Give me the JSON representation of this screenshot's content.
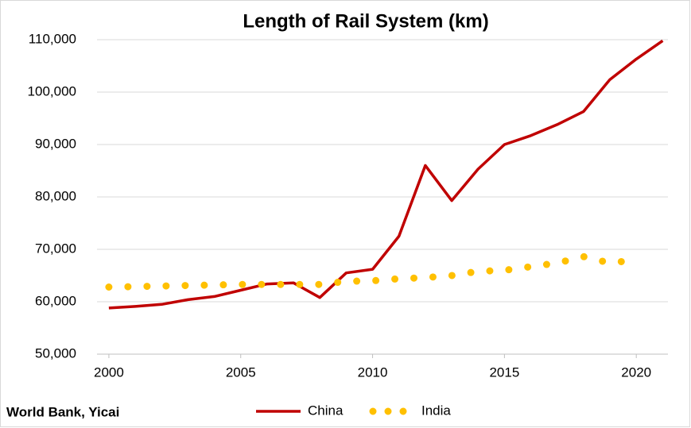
{
  "chart_data": {
    "type": "line",
    "title": "Length of Rail System (km)",
    "source": "World Bank, Yicai",
    "series": [
      {
        "name": "China",
        "color": "#c00000",
        "style": "solid",
        "x": [
          2000,
          2001,
          2002,
          2003,
          2004,
          2005,
          2006,
          2007,
          2008,
          2009,
          2010,
          2011,
          2012,
          2013,
          2014,
          2015,
          2016,
          2017,
          2018,
          2019,
          2020,
          2021
        ],
        "values": [
          58800,
          59100,
          59500,
          60400,
          61000,
          62200,
          63400,
          63600,
          60800,
          65500,
          66200,
          72500,
          86000,
          79300,
          85300,
          90000,
          91700,
          93800,
          96300,
          102400,
          106300,
          109800
        ]
      },
      {
        "name": "India",
        "color": "#ffc000",
        "style": "dotted",
        "x": [
          2000,
          2001,
          2002,
          2003,
          2004,
          2005,
          2006,
          2007,
          2008,
          2009,
          2010,
          2011,
          2012,
          2013,
          2014,
          2015,
          2016,
          2017,
          2018,
          2019,
          2020
        ],
        "values": [
          62800,
          62900,
          63000,
          63100,
          63200,
          63300,
          63300,
          63300,
          63300,
          63900,
          64000,
          64400,
          64600,
          65000,
          65800,
          66000,
          66700,
          67400,
          68600,
          67400,
          68000
        ]
      }
    ],
    "xlim": [
      1999.55,
      2021.2
    ],
    "xticks": [
      2000,
      2005,
      2010,
      2015,
      2020
    ],
    "ylim": [
      50000,
      110000
    ],
    "yticks": [
      {
        "value": 50000,
        "label": "50,000"
      },
      {
        "value": 60000,
        "label": "60,000"
      },
      {
        "value": 70000,
        "label": "70,000"
      },
      {
        "value": 80000,
        "label": "80,000"
      },
      {
        "value": 90000,
        "label": "90,000"
      },
      {
        "value": 100000,
        "label": "100,000"
      },
      {
        "value": 110000,
        "label": "110,000"
      }
    ],
    "grid": true,
    "legend": "bottom"
  }
}
